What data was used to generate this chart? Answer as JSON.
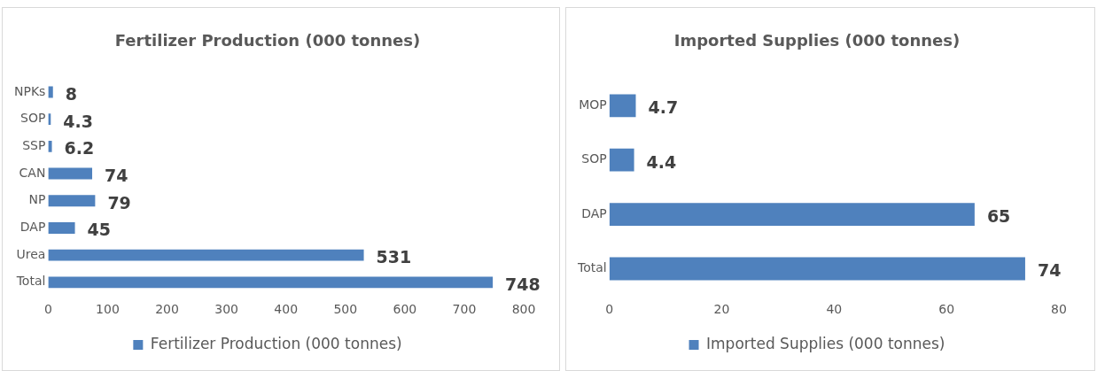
{
  "chart_data": [
    {
      "type": "bar",
      "orientation": "horizontal",
      "title": "Fertilizer Production (000 tonnes)",
      "categories": [
        "NPKs",
        "SOP",
        "SSP",
        "CAN",
        "NP",
        "DAP",
        "Urea",
        "Total"
      ],
      "series": [
        {
          "name": "Fertilizer Production (000 tonnes)",
          "color": "#4f81bd",
          "values": [
            8,
            4.3,
            6.2,
            74,
            79,
            45,
            531,
            748
          ]
        }
      ],
      "xlim": [
        0,
        800
      ],
      "xticks": [
        0,
        100,
        200,
        300,
        400,
        500,
        600,
        700,
        800
      ],
      "grid": false,
      "legend": "bottom",
      "data_labels": true
    },
    {
      "type": "bar",
      "orientation": "horizontal",
      "title": "Imported Supplies (000 tonnes)",
      "categories": [
        "MOP",
        "SOP",
        "DAP",
        "Total"
      ],
      "series": [
        {
          "name": "Imported Supplies (000 tonnes)",
          "color": "#4f81bd",
          "values": [
            4.7,
            4.4,
            65,
            74
          ]
        }
      ],
      "xlim": [
        0,
        80
      ],
      "xticks": [
        0,
        20,
        40,
        60,
        80
      ],
      "grid": false,
      "legend": "bottom",
      "data_labels": true
    }
  ]
}
